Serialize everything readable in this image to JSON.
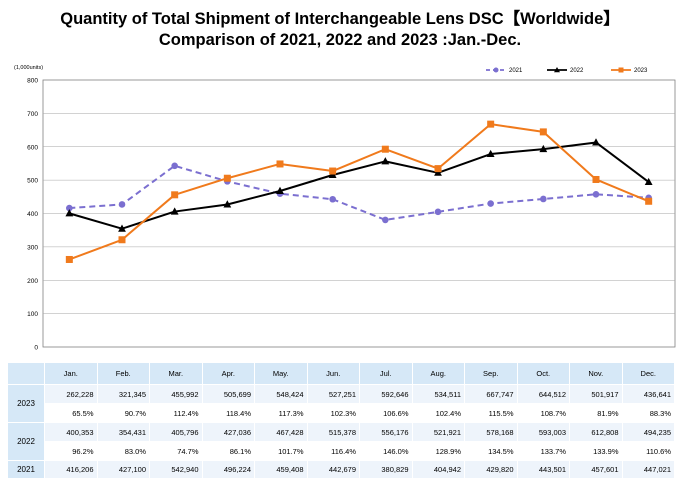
{
  "chart_data": {
    "type": "line",
    "title_line1": "Quantity of Total Shipment of Interchangeable Lens DSC【Worldwide】",
    "title_line2": "Comparison of 2021, 2022 and 2023 :Jan.-Dec.",
    "ylabel": "(1,000units)",
    "ylim": [
      0,
      800
    ],
    "yticks": [
      0,
      100,
      200,
      300,
      400,
      500,
      600,
      700,
      800
    ],
    "grid": true,
    "legend_position": "top-right",
    "categories": [
      "Jan.",
      "Feb.",
      "Mar.",
      "Apr.",
      "May.",
      "Jun.",
      "Jul.",
      "Aug.",
      "Sep.",
      "Oct.",
      "Nov.",
      "Dec."
    ],
    "series": [
      {
        "name": "2021",
        "color": "#7b6fd0",
        "style": "dashed",
        "marker": "circle",
        "values": [
          416.206,
          427.1,
          542.94,
          496.224,
          459.408,
          442.679,
          380.829,
          404.942,
          429.82,
          443.501,
          457.601,
          447.021
        ]
      },
      {
        "name": "2022",
        "color": "#000000",
        "style": "solid",
        "marker": "triangle",
        "values": [
          400.353,
          354.431,
          405.796,
          427.036,
          467.428,
          515.378,
          556.176,
          521.921,
          578.168,
          593.003,
          612.808,
          494.235
        ]
      },
      {
        "name": "2023",
        "color": "#f07a1c",
        "style": "solid",
        "marker": "square",
        "values": [
          262.228,
          321.345,
          455.992,
          505.699,
          548.424,
          527.251,
          592.646,
          534.511,
          667.747,
          644.512,
          501.917,
          436.641
        ]
      }
    ]
  },
  "table": {
    "months": [
      "Jan.",
      "Feb.",
      "Mar.",
      "Apr.",
      "May.",
      "Jun.",
      "Jul.",
      "Aug.",
      "Sep.",
      "Oct.",
      "Nov.",
      "Dec."
    ],
    "rows": [
      {
        "year": "2023",
        "units": [
          "262,228",
          "321,345",
          "455,992",
          "505,699",
          "548,424",
          "527,251",
          "592,646",
          "534,511",
          "667,747",
          "644,512",
          "501,917",
          "436,641"
        ],
        "percent": [
          "65.5%",
          "90.7%",
          "112.4%",
          "118.4%",
          "117.3%",
          "102.3%",
          "106.6%",
          "102.4%",
          "115.5%",
          "108.7%",
          "81.9%",
          "88.3%"
        ]
      },
      {
        "year": "2022",
        "units": [
          "400,353",
          "354,431",
          "405,796",
          "427,036",
          "467,428",
          "515,378",
          "556,176",
          "521,921",
          "578,168",
          "593,003",
          "612,808",
          "494,235"
        ],
        "percent": [
          "96.2%",
          "83.0%",
          "74.7%",
          "86.1%",
          "101.7%",
          "116.4%",
          "146.0%",
          "128.9%",
          "134.5%",
          "133.7%",
          "133.9%",
          "110.6%"
        ]
      },
      {
        "year": "2021",
        "units": [
          "416,206",
          "427,100",
          "542,940",
          "496,224",
          "459,408",
          "442,679",
          "380,829",
          "404,942",
          "429,820",
          "443,501",
          "457,601",
          "447,021"
        ]
      }
    ]
  }
}
